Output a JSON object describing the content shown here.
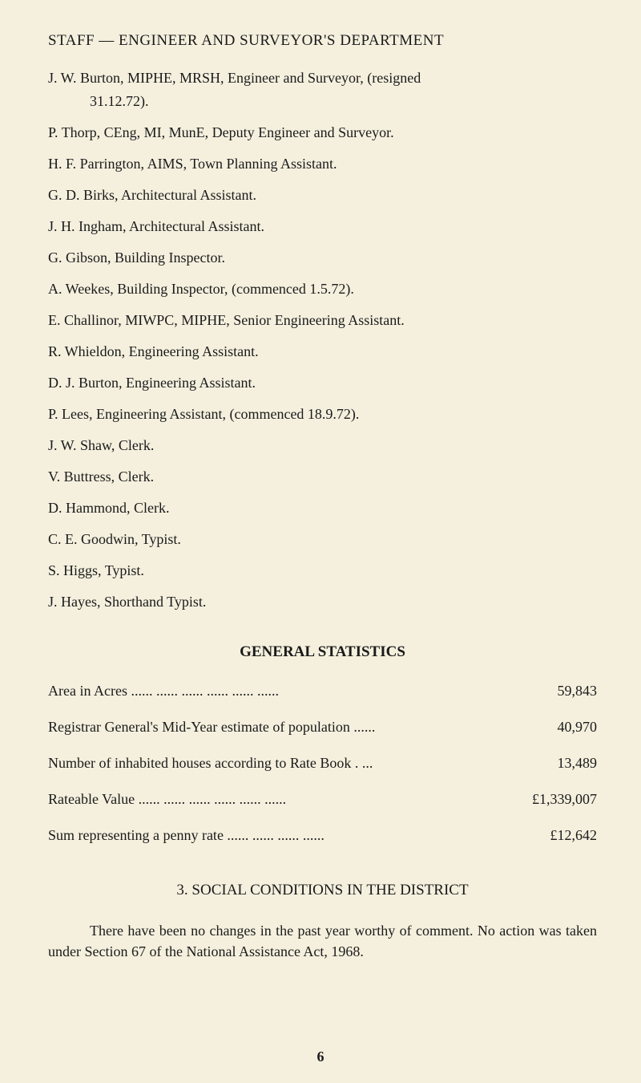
{
  "colors": {
    "page_bg": "#f5f0de",
    "text": "#1a1a1a"
  },
  "typography": {
    "body_font": "Georgia, 'Times New Roman', serif",
    "body_size_pt": 14,
    "title_size_pt": 14.5
  },
  "dept_title": "STAFF — ENGINEER AND SURVEYOR'S DEPARTMENT",
  "staff": [
    "J. W. Burton, MIPHE, MRSH, Engineer and Surveyor, (resigned",
    "31.12.72).",
    "P. Thorp, CEng, MI, MunE, Deputy Engineer and Surveyor.",
    "H. F. Parrington, AIMS, Town Planning Assistant.",
    "G. D. Birks, Architectural Assistant.",
    "J. H. Ingham, Architectural Assistant.",
    "G. Gibson, Building Inspector.",
    "A. Weekes, Building Inspector, (commenced 1.5.72).",
    "E. Challinor, MIWPC, MIPHE, Senior Engineering Assistant.",
    "R. Whieldon, Engineering Assistant.",
    "D. J. Burton, Engineering Assistant.",
    "P. Lees, Engineering Assistant, (commenced 18.9.72).",
    "J. W. Shaw, Clerk.",
    "V. Buttress, Clerk.",
    "D. Hammond, Clerk.",
    "C. E. Goodwin, Typist.",
    "S. Higgs, Typist.",
    "J. Hayes, Shorthand Typist."
  ],
  "stats_title": "GENERAL STATISTICS",
  "stats": [
    {
      "label": "Area in Acres ......  ......  ......  ......  ......  ......",
      "value": "59,843"
    },
    {
      "label": "Registrar General's Mid-Year estimate of population ......",
      "value": "40,970"
    },
    {
      "label": "Number of inhabited houses according to Rate Book . ...",
      "value": "13,489"
    },
    {
      "label": "Rateable Value  ......          ......  ......  ......  ......  ......",
      "value": "£1,339,007"
    },
    {
      "label": "Sum representing a penny rate  ......      ......  ......  ......",
      "value": "£12,642"
    }
  ],
  "social_title": "3.   SOCIAL CONDITIONS IN THE DISTRICT",
  "social_para": "There have been no changes in the past year worthy of comment. No action was taken under Section 67 of the National Assistance Act, 1968.",
  "page_number": "6"
}
